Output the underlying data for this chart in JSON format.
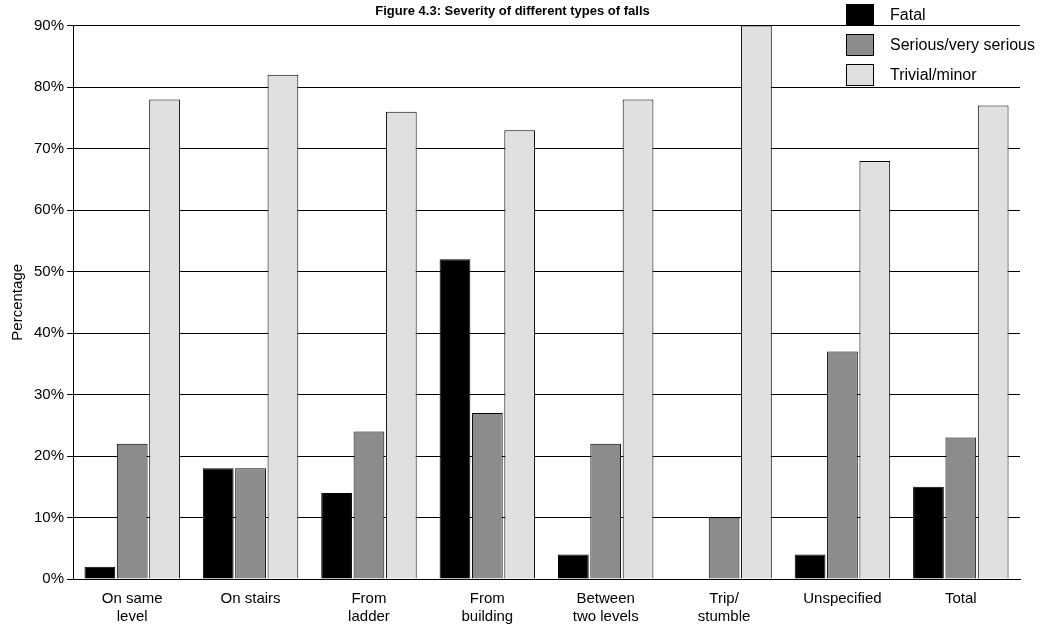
{
  "chart_data": {
    "type": "bar",
    "title": "Figure 4.3: Severity of different types of falls",
    "ylabel": "Percentage",
    "categories": [
      "On same level",
      "On stairs",
      "From ladder",
      "From building",
      "Between two levels",
      "Trip/stumble",
      "Unspecified",
      "Total"
    ],
    "series": [
      {
        "name": "Fatal",
        "color": "#000000",
        "values": [
          2,
          18,
          14,
          52,
          4,
          0,
          4,
          15
        ]
      },
      {
        "name": "Serious/very serious",
        "color": "#8c8c8c",
        "values": [
          22,
          18,
          24,
          27,
          22,
          10,
          37,
          23
        ]
      },
      {
        "name": "Trivial/minor",
        "color": "#e0e0e0",
        "values": [
          78,
          82,
          76,
          73,
          78,
          90,
          68,
          77
        ]
      }
    ],
    "ylim": [
      0,
      90
    ],
    "yticks": [
      {
        "value": 0,
        "label": "0%"
      },
      {
        "value": 10,
        "label": "10%"
      },
      {
        "value": 20,
        "label": "20%"
      },
      {
        "value": 30,
        "label": "30%"
      },
      {
        "value": 40,
        "label": "40%"
      },
      {
        "value": 50,
        "label": "50%"
      },
      {
        "value": 60,
        "label": "60%"
      },
      {
        "value": 70,
        "label": "70%"
      },
      {
        "value": 80,
        "label": "80%"
      },
      {
        "value": 90,
        "label": "90%"
      }
    ],
    "grid": "y",
    "legend": "top right"
  }
}
